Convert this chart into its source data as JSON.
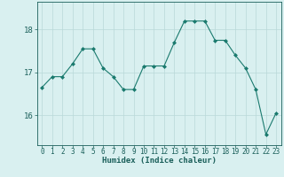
{
  "x": [
    0,
    1,
    2,
    3,
    4,
    5,
    6,
    7,
    8,
    9,
    10,
    11,
    12,
    13,
    14,
    15,
    16,
    17,
    18,
    19,
    20,
    21,
    22,
    23
  ],
  "y": [
    16.65,
    16.9,
    16.9,
    17.2,
    17.55,
    17.55,
    17.1,
    16.9,
    16.6,
    16.6,
    17.15,
    17.15,
    17.15,
    17.7,
    18.2,
    18.2,
    18.2,
    17.75,
    17.75,
    17.4,
    17.1,
    16.6,
    15.55,
    16.05
  ],
  "line_color": "#1a7a6e",
  "marker": "D",
  "marker_size": 2,
  "bg_color": "#d9f0f0",
  "grid_color": "#b8d8d8",
  "xlabel": "Humidex (Indice chaleur)",
  "ylabel": "",
  "ylim": [
    15.3,
    18.65
  ],
  "yticks": [
    16,
    17,
    18
  ],
  "xticks": [
    0,
    1,
    2,
    3,
    4,
    5,
    6,
    7,
    8,
    9,
    10,
    11,
    12,
    13,
    14,
    15,
    16,
    17,
    18,
    19,
    20,
    21,
    22,
    23
  ],
  "tick_color": "#1a5f5a",
  "xlabel_fontsize": 6.5,
  "tick_fontsize": 5.5,
  "ytick_fontsize": 6.5
}
